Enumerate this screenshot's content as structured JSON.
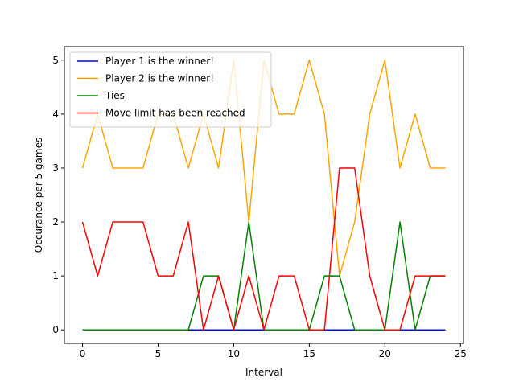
{
  "chart_data": {
    "type": "line",
    "title": "",
    "xlabel": "Interval",
    "ylabel": "Occurance per 5 games",
    "xlim": [
      -1.2,
      25.2
    ],
    "ylim": [
      -0.25,
      5.25
    ],
    "xticks": [
      0,
      5,
      10,
      15,
      20,
      25
    ],
    "yticks": [
      0,
      1,
      2,
      3,
      4,
      5
    ],
    "grid": false,
    "legend_position": "top-left",
    "x": [
      0,
      1,
      2,
      3,
      4,
      5,
      6,
      7,
      8,
      9,
      10,
      11,
      12,
      13,
      14,
      15,
      16,
      17,
      18,
      19,
      20,
      21,
      22,
      23,
      24
    ],
    "series": [
      {
        "name": "Player 1 is the winner!",
        "color": "#0000ff",
        "values": [
          0,
          0,
          0,
          0,
          0,
          0,
          0,
          0,
          0,
          0,
          0,
          0,
          0,
          0,
          0,
          0,
          0,
          0,
          0,
          0,
          0,
          0,
          0,
          0,
          0
        ]
      },
      {
        "name": "Player 2 is the winner!",
        "color": "#ffa500",
        "values": [
          3,
          4,
          3,
          3,
          3,
          4,
          4,
          3,
          4,
          3,
          5,
          2,
          5,
          4,
          4,
          5,
          4,
          1,
          2,
          4,
          5,
          3,
          4,
          3,
          3
        ]
      },
      {
        "name": "Ties",
        "color": "#008000",
        "values": [
          0,
          0,
          0,
          0,
          0,
          0,
          0,
          0,
          1,
          1,
          0,
          2,
          0,
          0,
          0,
          0,
          1,
          1,
          0,
          0,
          0,
          2,
          0,
          1,
          1
        ]
      },
      {
        "name": "Move limit has been reached",
        "color": "#ff0000",
        "values": [
          2,
          1,
          2,
          2,
          2,
          1,
          1,
          2,
          0,
          1,
          0,
          1,
          0,
          1,
          1,
          0,
          0,
          3,
          3,
          1,
          0,
          0,
          1,
          1,
          1
        ]
      }
    ]
  }
}
